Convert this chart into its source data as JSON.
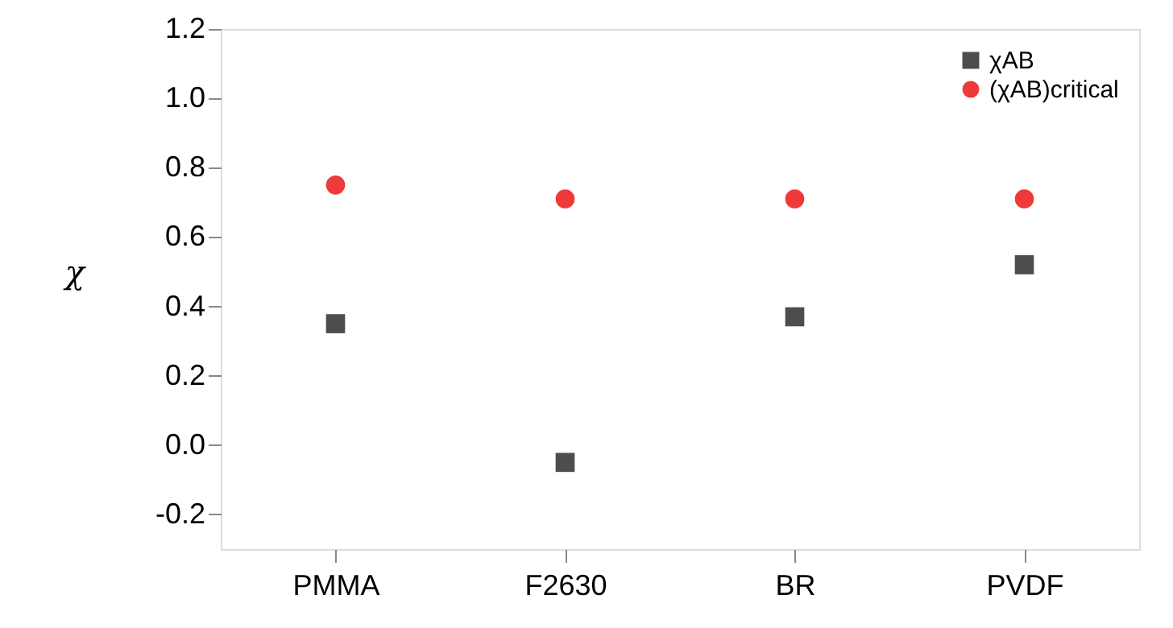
{
  "chart_data": {
    "type": "scatter",
    "ylabel": "χ",
    "categories": [
      "PMMA",
      "F2630",
      "BR",
      "PVDF"
    ],
    "series": [
      {
        "name": "χAB",
        "color": "#4d4d4d",
        "marker": "square",
        "values": [
          0.35,
          -0.05,
          0.37,
          0.52
        ]
      },
      {
        "name": "(χAB)critical",
        "color": "#ee3a3a",
        "marker": "circle",
        "values": [
          0.75,
          0.71,
          0.71,
          0.71
        ]
      }
    ],
    "ylim": [
      -0.3,
      1.2
    ],
    "yticks": [
      {
        "value": -0.2,
        "label": "-0.2"
      },
      {
        "value": 0.0,
        "label": "0.0"
      },
      {
        "value": 0.2,
        "label": "0.2"
      },
      {
        "value": 0.4,
        "label": "0.4"
      },
      {
        "value": 0.6,
        "label": "0.6"
      },
      {
        "value": 0.8,
        "label": "0.8"
      },
      {
        "value": 1.0,
        "label": "1.0"
      },
      {
        "value": 1.2,
        "label": "1.2"
      }
    ],
    "grid": false,
    "legend": "top right"
  }
}
